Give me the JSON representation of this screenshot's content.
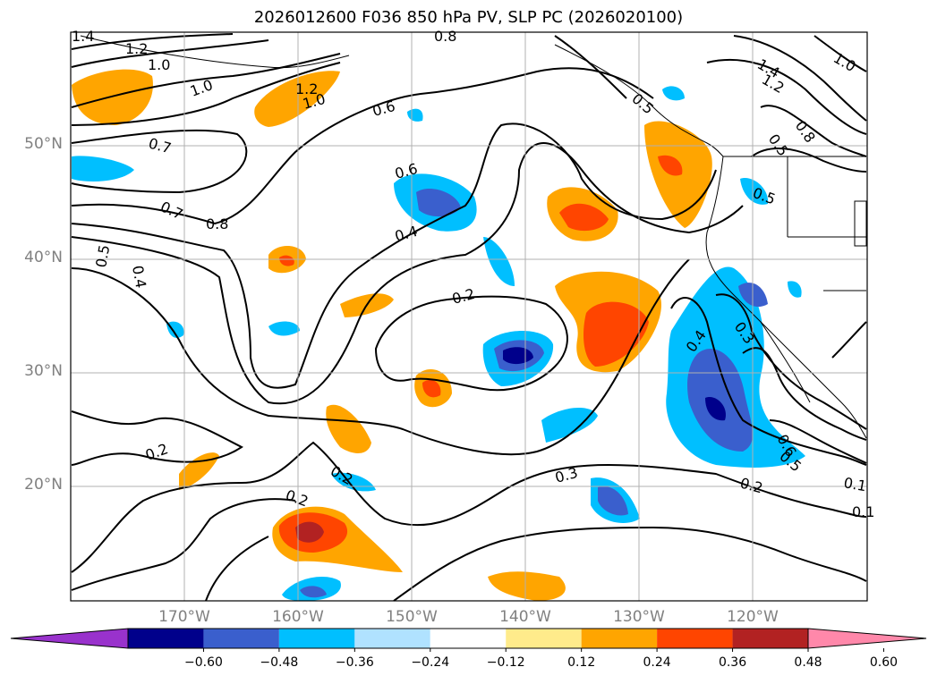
{
  "title": "2026012600 F036 850 hPa PV, SLP PC (2026020100)",
  "map": {
    "lon_range": [
      180,
      110
    ],
    "lat_range": [
      10,
      60
    ],
    "lat_labels": [
      "50°N",
      "40°N",
      "30°N",
      "20°N"
    ],
    "lat_values": [
      50,
      40,
      30,
      20
    ],
    "lon_labels": [
      "170°W",
      "160°W",
      "150°W",
      "140°W",
      "130°W",
      "120°W"
    ],
    "lon_values": [
      170,
      160,
      150,
      140,
      130,
      120
    ],
    "grid": true,
    "contour_labels": [
      "1.4",
      "1.2",
      "1.0",
      "1.0",
      "1.2",
      "1.0",
      "0.8",
      "0.6",
      "0.7",
      "0.7",
      "0.8",
      "0.6",
      "0.4",
      "0.5",
      "0.4",
      "0.2",
      "0.2",
      "0.2",
      "0.3",
      "0.2",
      "0.4",
      "0.3",
      "0.5",
      "0.5",
      "0.8",
      "1.4",
      "1.2",
      "1.0",
      "0.5",
      "0.6",
      "0.5",
      "0.2",
      "0.1",
      "0.1"
    ]
  },
  "colorbar": {
    "ticks": [
      "−0.60",
      "−0.48",
      "−0.36",
      "−0.24",
      "−0.12",
      "0.12",
      "0.24",
      "0.36",
      "0.48",
      "0.60"
    ],
    "colors": [
      "#9932cc",
      "#00008b",
      "#3a5fcd",
      "#00bfff",
      "#b0e2ff",
      "#ffffff",
      "#ffeb8b",
      "#ffa500",
      "#ff4500",
      "#b22222",
      "#ff88aa"
    ]
  }
}
